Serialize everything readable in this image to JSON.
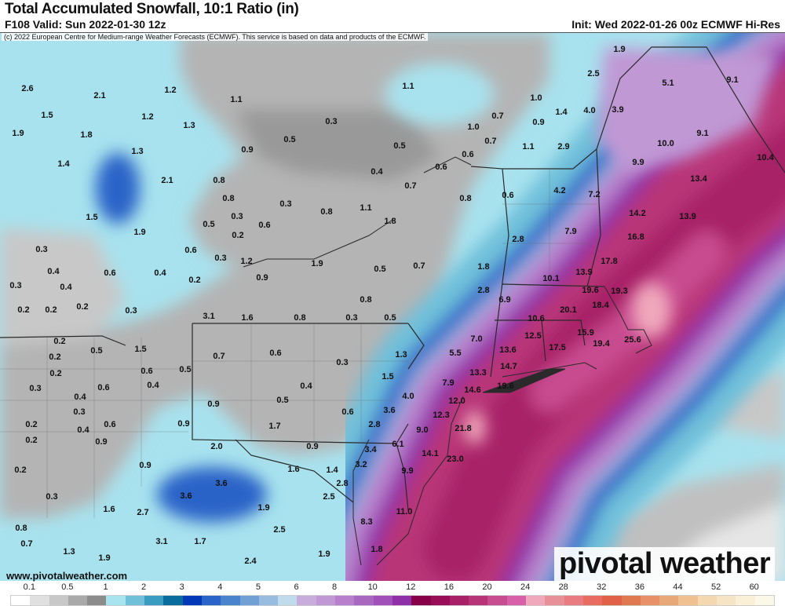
{
  "header": {
    "title": "Total Accumulated Snowfall, 10:1 Ratio (in)",
    "valid": "F108 Valid: Sun 2022-01-30 12z",
    "init": "Init: Wed 2022-01-26 00z ECMWF Hi-Res"
  },
  "credit": "(c) 2022 European Centre for Medium-range Weather Forecasts (ECMWF). This service is based on data and products of the ECMWF.",
  "footer": {
    "site": "www.pivotalweather.com",
    "brand": "pivotal weather"
  },
  "legend": {
    "labels": [
      "0.1",
      "0.5",
      "1",
      "2",
      "3",
      "4",
      "5",
      "6",
      "8",
      "10",
      "12",
      "16",
      "20",
      "24",
      "28",
      "32",
      "36",
      "44",
      "52",
      "60"
    ],
    "colors": [
      "#ffffff",
      "#e0e0e0",
      "#c8c8c8",
      "#a9a9a9",
      "#8c8c8c",
      "#a8e4f0",
      "#70c0da",
      "#3a9cc0",
      "#0a6c9c",
      "#0038b8",
      "#2a64c8",
      "#4a84cc",
      "#70a0d4",
      "#98bce0",
      "#c0dcec",
      "#c8acdc",
      "#c098d4",
      "#b880cc",
      "#a868c0",
      "#a050b8",
      "#9030a8",
      "#880048",
      "#980c58",
      "#a82068",
      "#b83478",
      "#c84c90",
      "#d860a8",
      "#f0a8bc",
      "#e89098",
      "#e87c80",
      "#e86c60",
      "#e06048",
      "#e07850",
      "#e89068",
      "#e8a878",
      "#f0c090",
      "#f4d8b0",
      "#f6e4c4",
      "#faf0d8",
      "#fcf8e8"
    ]
  },
  "map": {
    "labels": [
      "2.6",
      "2.1",
      "1.2",
      "1.1",
      "1.1",
      "1.9",
      "2.5",
      "5.1",
      "9.1",
      "1.5",
      "1.2",
      "1.3",
      "0.3",
      "1.0",
      "0.7",
      "0.9",
      "1.4",
      "4.0",
      "3.9",
      "1.9",
      "1.8",
      "0.9",
      "0.5",
      "1.0",
      "0.5",
      "0.7",
      "1.1",
      "2.9",
      "10.0",
      "9.1",
      "1.3",
      "1.4",
      "2.1",
      "0.8",
      "0.4",
      "0.6",
      "0.6",
      "0.7",
      "9.9",
      "10.4",
      "0.8",
      "0.3",
      "0.8",
      "1.1",
      "1.8",
      "0.8",
      "0.6",
      "4.2",
      "7.2",
      "13.4",
      "1.5",
      "0.5",
      "0.3",
      "0.6",
      "1.9",
      "0.2",
      "14.2",
      "13.9",
      "16.8",
      "7.9",
      "2.8",
      "0.3",
      "0.6",
      "0.3",
      "1.2",
      "1.9",
      "0.5",
      "0.7",
      "1.8",
      "17.8",
      "0.4",
      "0.6",
      "0.4",
      "0.9",
      "13.9",
      "10.1",
      "0.3",
      "0.4",
      "0.2",
      "0.2",
      "0.3",
      "0.8",
      "2.8",
      "6.9",
      "19.6",
      "19.3",
      "18.4",
      "20.1",
      "0.2",
      "0.2",
      "3.1",
      "1.6",
      "0.8",
      "0.3",
      "0.5",
      "10.6",
      "0.2",
      "0.5",
      "1.5",
      "0.7",
      "0.6",
      "7.0",
      "12.5",
      "15.9",
      "19.4",
      "25.6",
      "0.2",
      "0.3",
      "1.3",
      "5.5",
      "13.6",
      "17.5",
      "0.2",
      "0.6",
      "0.5",
      "0.4",
      "0.6",
      "0.3",
      "1.5",
      "0.4",
      "13.3",
      "14.7",
      "7.9",
      "14.6",
      "19.6",
      "0.4",
      "0.5",
      "4.0",
      "0.3",
      "0.9",
      "0.6",
      "3.6",
      "12.0",
      "12.3",
      "0.2",
      "0.6",
      "0.4",
      "0.9",
      "1.7",
      "2.8",
      "9.0",
      "21.8",
      "0.2",
      "0.9",
      "2.0",
      "0.9",
      "6.1",
      "3.4",
      "14.1",
      "23.0",
      "0.9",
      "0.2",
      "1.6",
      "1.4",
      "3.2",
      "9.9",
      "3.6",
      "2.8",
      "3.6",
      "1.9",
      "2.5",
      "0.3",
      "1.6",
      "2.7",
      "11.0",
      "2.5",
      "8.3",
      "3.1",
      "1.7",
      "0.8",
      "0.7",
      "1.3",
      "1.9",
      "2.4",
      "1.9",
      "1.8"
    ]
  }
}
